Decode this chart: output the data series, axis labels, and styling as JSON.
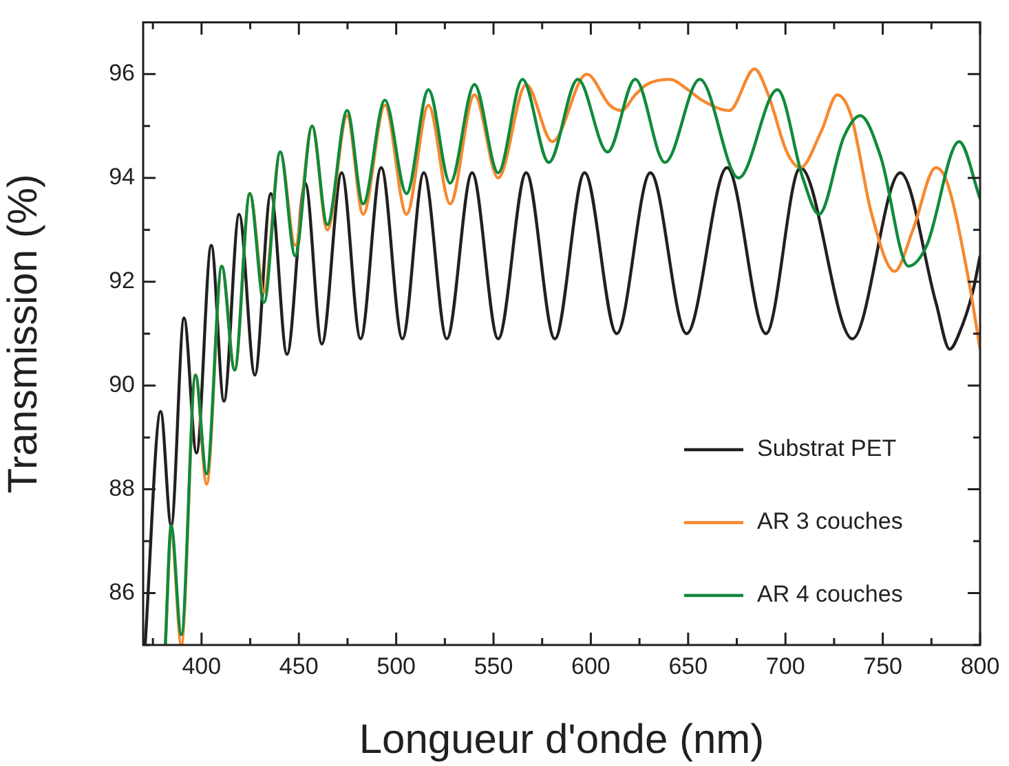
{
  "chart_data": {
    "type": "line",
    "xlabel": "Longueur d'onde (nm)",
    "ylabel": "Transmission (%)",
    "xlim": [
      370,
      800
    ],
    "ylim": [
      85,
      97
    ],
    "xticks": [
      {
        "value": 375,
        "label": null
      },
      400,
      {
        "value": 425,
        "label": null
      },
      450,
      {
        "value": 475,
        "label": null
      },
      500,
      {
        "value": 525,
        "label": null
      },
      550,
      {
        "value": 575,
        "label": null
      },
      600,
      {
        "value": 625,
        "label": null
      },
      650,
      {
        "value": 675,
        "label": null
      },
      700,
      {
        "value": 725,
        "label": null
      },
      750,
      {
        "value": 775,
        "label": null
      },
      800
    ],
    "yticks": [
      {
        "value": 85,
        "label": null
      },
      86,
      {
        "value": 87,
        "label": null
      },
      88,
      {
        "value": 89,
        "label": null
      },
      90,
      {
        "value": 91,
        "label": null
      },
      92,
      {
        "value": 93,
        "label": null
      },
      94,
      {
        "value": 95,
        "label": null
      },
      96
    ],
    "legend": "bottom right",
    "series": [
      {
        "name": "Substrat PET",
        "color": "#231f20",
        "x": [
          371,
          379,
          384.4,
          391,
          397.4,
          405,
          411.5,
          419.3,
          427.4,
          435.6,
          443.9,
          453.3,
          461.8,
          472,
          481.7,
          492.3,
          503.2,
          514.2,
          526,
          539,
          552.4,
          566.8,
          581.5,
          596.8,
          613.3,
          630.6,
          649.2,
          670,
          690,
          707.7,
          734.4,
          759,
          777.3,
          784.4,
          789.2,
          796.2,
          800
        ],
        "values": [
          85.0,
          89.5,
          87.3,
          91.3,
          88.7,
          92.7,
          89.7,
          93.3,
          90.2,
          93.7,
          90.6,
          93.9,
          90.8,
          94.1,
          90.9,
          94.2,
          90.9,
          94.1,
          90.9,
          94.1,
          90.9,
          94.1,
          90.9,
          94.1,
          91.0,
          94.1,
          91.0,
          94.2,
          91.0,
          94.2,
          90.9,
          94.1,
          91.6,
          90.7,
          91.0,
          91.8,
          92.5
        ]
      },
      {
        "name": "AR 3 couches",
        "color": "#f7882f",
        "x": [
          381.4,
          384.4,
          389.6,
          396.9,
          402.6,
          410.4,
          417,
          424.8,
          432.1,
          440.4,
          448.1,
          456.8,
          464.6,
          474.8,
          483,
          494.2,
          505.3,
          516.6,
          527.7,
          540.2,
          552.4,
          566.8,
          580.2,
          597.9,
          609.8,
          615.7,
          622.8,
          628.7,
          640.5,
          649.9,
          657,
          671.2,
          684.1,
          691.2,
          700.7,
          707.7,
          718.4,
          726.6,
          733.7,
          744.3,
          756.1,
          765.5,
          777.3,
          783.2,
          793.8,
          800
        ],
        "values": [
          85.0,
          87.2,
          85.0,
          90.2,
          88.1,
          92.3,
          90.3,
          93.7,
          91.8,
          94.5,
          92.7,
          95.0,
          93.0,
          95.2,
          93.3,
          95.4,
          93.3,
          95.4,
          93.5,
          95.6,
          94.0,
          95.8,
          94.7,
          96.0,
          95.4,
          95.3,
          95.6,
          95.8,
          95.9,
          95.7,
          95.5,
          95.3,
          96.1,
          95.6,
          94.5,
          94.2,
          94.9,
          95.6,
          95.2,
          93.3,
          92.2,
          93.0,
          94.2,
          93.9,
          92.1,
          90.7
        ]
      },
      {
        "name": "AR 4 couches",
        "color": "#108a3c",
        "x": [
          381.4,
          384.4,
          389.6,
          396.9,
          402.6,
          410.4,
          417,
          424.8,
          432.1,
          440.4,
          448.1,
          456.8,
          464.6,
          474.8,
          483,
          494.2,
          505.3,
          516.6,
          527.7,
          540.2,
          552.4,
          564.9,
          578.4,
          593.3,
          608.6,
          622.8,
          638.1,
          656,
          675.9,
          695.9,
          708.9,
          717.2,
          730.1,
          738.4,
          749,
          763.2,
          772.6,
          789.2,
          800
        ],
        "values": [
          85.0,
          87.3,
          85.2,
          90.2,
          88.3,
          92.3,
          90.3,
          93.7,
          91.6,
          94.5,
          92.5,
          95.0,
          93.1,
          95.3,
          93.5,
          95.5,
          93.7,
          95.7,
          93.9,
          95.8,
          94.1,
          95.9,
          94.3,
          95.9,
          94.5,
          95.9,
          94.3,
          95.9,
          94.0,
          95.7,
          94.0,
          93.3,
          94.8,
          95.2,
          94.4,
          92.3,
          92.7,
          94.7,
          93.6
        ]
      }
    ]
  }
}
